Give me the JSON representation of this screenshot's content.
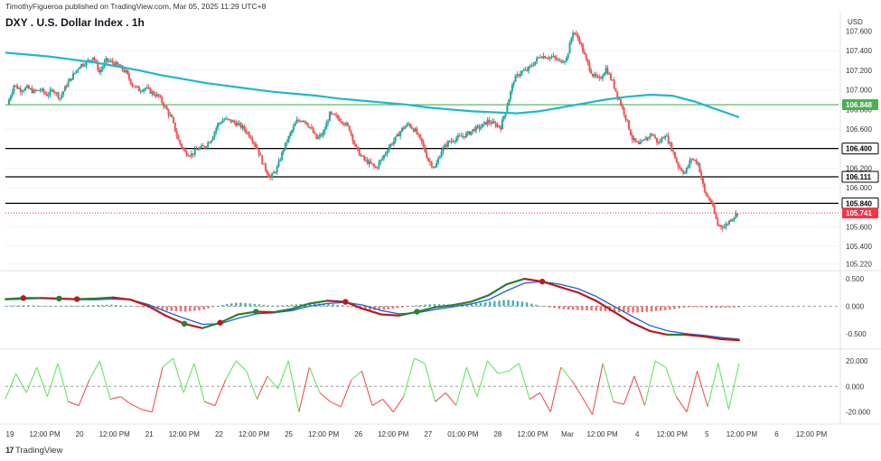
{
  "header": {
    "published": "TimothyFigueroa published on TradingView.com, Mar 05, 2025 11:29 UTC+8",
    "title": "DXY . U.S. Dollar Index . 1h",
    "currency": "USD"
  },
  "footer": {
    "logo_text": "TradingView"
  },
  "colors": {
    "up": "#26a69a",
    "down": "#ef5350",
    "ma": "#20b7ce",
    "macd_fast": "#2e7d32",
    "macd_slow": "#1e5fd8",
    "macd_fast_down": "#b71c1c",
    "osc_up": "#66e566",
    "osc_down": "#ef5350",
    "hline_green": "#4caf50",
    "hline_black": "#000000",
    "label_red": "#f23645"
  },
  "chart_data": [
    {
      "type": "candlestick",
      "title": "DXY . U.S. Dollar Index . 1h",
      "ylim": [
        105.17,
        107.66
      ],
      "y_ticks": [
        "107.400",
        "107.200",
        "107.000",
        "106.800",
        "106.600",
        "106.200",
        "106.000",
        "105.600",
        "105.400",
        "105.220"
      ],
      "top_tick_partial": "107.600",
      "x_ticks": [
        "19",
        "12:00 PM",
        "20",
        "12:00 PM",
        "21",
        "12:00 PM",
        "22",
        "12:00 PM",
        "25",
        "12:00 PM",
        "26",
        "12:00 PM",
        "27",
        "01:00 PM",
        "28",
        "12:00 PM",
        "Mar",
        "12:00 PM",
        "4",
        "12:00 PM",
        "5",
        "12:00 PM",
        "6",
        "12:00 PM"
      ],
      "path_close": [
        106.85,
        107.05,
        107.0,
        107.02,
        106.98,
        107.0,
        106.95,
        107.0,
        106.92,
        107.05,
        107.15,
        107.25,
        107.28,
        107.34,
        107.18,
        107.3,
        107.28,
        107.24,
        107.18,
        107.05,
        107.0,
        107.02,
        106.97,
        106.93,
        106.82,
        106.7,
        106.48,
        106.36,
        106.34,
        106.4,
        106.42,
        106.5,
        106.65,
        106.7,
        106.68,
        106.65,
        106.6,
        106.52,
        106.4,
        106.22,
        106.1,
        106.2,
        106.4,
        106.55,
        106.68,
        106.7,
        106.62,
        106.5,
        106.55,
        106.75,
        106.72,
        106.68,
        106.6,
        106.4,
        106.3,
        106.25,
        106.2,
        106.3,
        106.42,
        106.5,
        106.6,
        106.65,
        106.58,
        106.46,
        106.28,
        106.2,
        106.38,
        106.46,
        106.5,
        106.52,
        106.55,
        106.6,
        106.62,
        106.68,
        106.65,
        106.62,
        106.85,
        107.1,
        107.18,
        107.2,
        107.27,
        107.35,
        107.34,
        107.33,
        107.29,
        107.32,
        107.6,
        107.5,
        107.3,
        107.15,
        107.1,
        107.22,
        107.08,
        106.9,
        106.72,
        106.5,
        106.43,
        106.5,
        106.55,
        106.45,
        106.55,
        106.4,
        106.22,
        106.15,
        106.3,
        106.25,
        105.95,
        105.85,
        105.62,
        105.6,
        105.68,
        105.74
      ],
      "ma_points": [
        107.38,
        107.36,
        107.34,
        107.31,
        107.28,
        107.24,
        107.2,
        107.15,
        107.11,
        107.07,
        107.04,
        107.01,
        106.98,
        106.96,
        106.94,
        106.91,
        106.89,
        106.87,
        106.85,
        106.82,
        106.8,
        106.78,
        106.77,
        106.76,
        106.78,
        106.82,
        106.86,
        106.9,
        106.93,
        106.95,
        106.94,
        106.88,
        106.8,
        106.72
      ],
      "hlines": [
        {
          "value": 106.848,
          "label": "106.848",
          "style": "green"
        },
        {
          "value": 106.4,
          "label": "106.400",
          "style": "black"
        },
        {
          "value": 106.111,
          "label": "106.111",
          "style": "black"
        },
        {
          "value": 105.84,
          "label": "105.840",
          "style": "black"
        },
        {
          "value": 105.741,
          "label": "105.741",
          "style": "red_dotted"
        }
      ]
    },
    {
      "type": "line",
      "name": "macd_panel",
      "ylim": [
        -0.75,
        0.6
      ],
      "y_ticks": [
        "0.500",
        "0.000",
        "-0.500"
      ],
      "fast": [
        0.13,
        0.15,
        0.15,
        0.14,
        0.13,
        0.14,
        0.16,
        0.12,
        0.0,
        -0.18,
        -0.32,
        -0.4,
        -0.3,
        -0.15,
        -0.1,
        -0.11,
        -0.05,
        0.05,
        0.1,
        0.08,
        -0.05,
        -0.15,
        -0.17,
        -0.1,
        -0.02,
        0.02,
        0.08,
        0.2,
        0.4,
        0.5,
        0.45,
        0.35,
        0.25,
        0.1,
        -0.1,
        -0.3,
        -0.45,
        -0.52,
        -0.52,
        -0.55,
        -0.6,
        -0.62
      ],
      "slow": [
        0.12,
        0.13,
        0.14,
        0.13,
        0.12,
        0.12,
        0.13,
        0.12,
        0.03,
        -0.1,
        -0.22,
        -0.33,
        -0.32,
        -0.22,
        -0.14,
        -0.12,
        -0.08,
        0.0,
        0.05,
        0.07,
        0.02,
        -0.08,
        -0.14,
        -0.12,
        -0.06,
        -0.01,
        0.04,
        0.12,
        0.28,
        0.42,
        0.45,
        0.4,
        0.32,
        0.18,
        0.0,
        -0.18,
        -0.35,
        -0.45,
        -0.5,
        -0.53,
        -0.57,
        -0.6
      ],
      "histogram": [
        0.01,
        0.02,
        0.01,
        0.01,
        0.01,
        0.02,
        0.03,
        0.0,
        -0.03,
        -0.08,
        -0.1,
        -0.07,
        0.02,
        0.07,
        0.04,
        0.01,
        0.03,
        0.05,
        0.05,
        0.01,
        -0.07,
        -0.07,
        -0.03,
        0.02,
        0.04,
        0.03,
        0.04,
        0.08,
        0.12,
        0.08,
        0.0,
        -0.05,
        -0.07,
        -0.08,
        -0.1,
        -0.12,
        -0.1,
        -0.07,
        -0.02,
        -0.02,
        -0.03,
        -0.02
      ],
      "cross_dots": [
        {
          "i": 1,
          "kind": "down"
        },
        {
          "i": 3,
          "kind": "up"
        },
        {
          "i": 4,
          "kind": "down"
        },
        {
          "i": 10,
          "kind": "up"
        },
        {
          "i": 12,
          "kind": "down"
        },
        {
          "i": 14,
          "kind": "up"
        },
        {
          "i": 19,
          "kind": "down"
        },
        {
          "i": 23,
          "kind": "up"
        },
        {
          "i": 30,
          "kind": "down"
        }
      ]
    },
    {
      "type": "line",
      "name": "oscillator_panel",
      "ylim": [
        -28,
        27
      ],
      "y_ticks": [
        "20.000",
        "0.000",
        "-20.000"
      ],
      "values": [
        -10,
        10,
        -5,
        15,
        -8,
        18,
        -12,
        -15,
        5,
        20,
        -10,
        -8,
        -14,
        -18,
        -20,
        15,
        22,
        -5,
        18,
        -12,
        -15,
        5,
        20,
        12,
        -10,
        8,
        -2,
        20,
        -20,
        15,
        -5,
        -12,
        -16,
        5,
        12,
        -15,
        -10,
        -20,
        -8,
        22,
        18,
        -12,
        -5,
        -15,
        15,
        -8,
        20,
        10,
        12,
        18,
        -10,
        -5,
        -20,
        15,
        5,
        -8,
        -22,
        18,
        -12,
        -14,
        8,
        -15,
        20,
        15,
        -8,
        -20,
        12,
        -16,
        18,
        -18,
        18
      ]
    }
  ]
}
